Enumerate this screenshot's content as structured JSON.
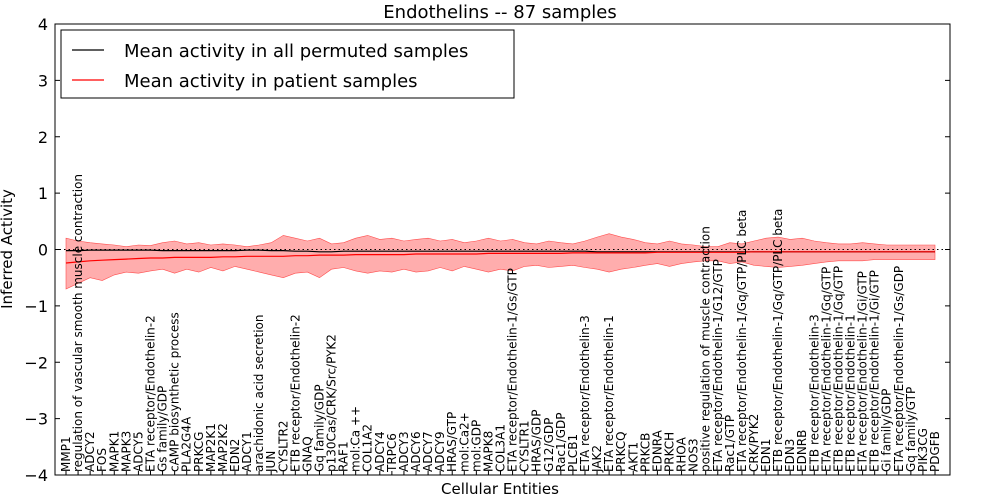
{
  "chart_data": {
    "type": "line",
    "title": "Endothelins -- 87 samples",
    "xlabel": "Cellular Entities",
    "ylabel": "Inferred Activity",
    "ylim": [
      -4,
      4
    ],
    "yticks": [
      "−4",
      "−3",
      "−2",
      "−1",
      "0",
      "1",
      "2",
      "3",
      "4"
    ],
    "legend_position": "top-left",
    "zero_reference_line": "dotted",
    "categories": [
      "MMP1",
      "regulation of vascular smooth muscle contraction",
      "ADCY2",
      "FOS",
      "MAPK1",
      "MAPK3",
      "ADCY5",
      "ETA receptor/Endothelin-2",
      "Gs family/GDP",
      "cAMP biosynthetic process",
      "PLA2G4A",
      "PRKCG",
      "MAP2K1",
      "MAP2K2",
      "EDN2",
      "ADCY1",
      "arachidonic acid secretion",
      "JUN",
      "CYSLTR2",
      "ETB receptor/Endothelin-2",
      "GNAQ",
      "Gq family/GDP",
      "p130Cas/CRK/Src/PYK2",
      "RAF1",
      "mol:Ca ++",
      "COL1A2",
      "ADCY4",
      "TRPC6",
      "ADCY3",
      "ADCY6",
      "ADCY7",
      "ADCY9",
      "HRAS/GTP",
      "mol:Ca2+",
      "mol:GDP",
      "MAPK8",
      "COL3A1",
      "ETA receptor/Endothelin-1/Gs/GTP",
      "CYSLTR1",
      "HRAS/GDP",
      "G12/GDP",
      "Rac1/GDP",
      "PLCB1",
      "ETA receptor/Endothelin-3",
      "JAK2",
      "ETA receptor/Endothelin-1",
      "PRKCQ",
      "AKT1",
      "PRKCB",
      "EDNRA",
      "PRKCH",
      "RHOA",
      "NOS3",
      "positive regulation of muscle contraction",
      "ETA receptor/Endothelin-1/G12/GTP",
      "Rac1/GTP",
      "ETA receptor/Endothelin-1/Gq/GTP/PLC beta",
      "CRK/PYK2",
      "EDN1",
      "ETB receptor/Endothelin-1/Gq/GTP/PLC beta",
      "EDN3",
      "EDNRB",
      "ETB receptor/Endothelin-3",
      "ETA receptor/Endothelin-1/Gq/GTP",
      "ETB receptor/Endothelin-1/Gq/GTP",
      "ETB receptor/Endothelin-1",
      "ETA receptor/Endothelin-1/Gi/GTP",
      "ETB receptor/Endothelin-1/Gi/GTP",
      "Gi family/GDP",
      "ETA receptor/Endothelin-1/Gs/GDP",
      "Gq family/GTP",
      "PIK3CG",
      "PDGFB"
    ],
    "series": [
      {
        "name": "Mean activity in all permuted samples",
        "color": "#000000",
        "values": [
          -0.02,
          -0.02,
          -0.01,
          -0.01,
          -0.01,
          -0.01,
          -0.01,
          -0.01,
          -0.02,
          -0.02,
          -0.02,
          -0.02,
          -0.02,
          -0.02,
          -0.02,
          -0.01,
          -0.01,
          -0.02,
          -0.02,
          -0.03,
          -0.03,
          -0.04,
          -0.04,
          -0.03,
          -0.03,
          -0.03,
          -0.03,
          -0.03,
          -0.03,
          -0.03,
          -0.03,
          -0.03,
          -0.03,
          -0.03,
          -0.03,
          -0.03,
          -0.03,
          -0.03,
          -0.03,
          -0.03,
          -0.03,
          -0.03,
          -0.03,
          -0.03,
          -0.04,
          -0.04,
          -0.04,
          -0.04,
          -0.04,
          -0.04,
          -0.04,
          -0.04,
          -0.04,
          -0.04,
          -0.04,
          -0.04,
          -0.04,
          -0.04,
          -0.04,
          -0.04,
          -0.04,
          -0.04,
          -0.04,
          -0.04,
          -0.04,
          -0.04,
          -0.04,
          -0.04,
          -0.04,
          -0.04,
          -0.04,
          -0.04,
          -0.04
        ]
      },
      {
        "name": "Mean activity in patient samples",
        "color": "#ff0000",
        "band_color": "#ff9999",
        "values": [
          -0.24,
          -0.22,
          -0.2,
          -0.19,
          -0.18,
          -0.17,
          -0.16,
          -0.15,
          -0.15,
          -0.14,
          -0.14,
          -0.14,
          -0.14,
          -0.13,
          -0.13,
          -0.12,
          -0.12,
          -0.12,
          -0.12,
          -0.11,
          -0.11,
          -0.1,
          -0.1,
          -0.1,
          -0.09,
          -0.09,
          -0.09,
          -0.09,
          -0.09,
          -0.08,
          -0.08,
          -0.08,
          -0.08,
          -0.08,
          -0.08,
          -0.07,
          -0.07,
          -0.07,
          -0.07,
          -0.07,
          -0.07,
          -0.07,
          -0.06,
          -0.06,
          -0.06,
          -0.06,
          -0.06,
          -0.06,
          -0.06,
          -0.05,
          -0.05,
          -0.05,
          -0.05,
          -0.05,
          -0.05,
          -0.05,
          -0.05,
          -0.04,
          -0.04,
          -0.04,
          -0.04,
          -0.04,
          -0.04,
          -0.04,
          -0.04,
          -0.04,
          -0.04,
          -0.04,
          -0.04,
          -0.04,
          -0.04,
          -0.04,
          -0.04
        ],
        "upper": [
          0.2,
          0.15,
          0.12,
          0.1,
          0.08,
          0.05,
          0.08,
          0.07,
          0.12,
          0.15,
          0.1,
          0.12,
          0.08,
          0.1,
          0.08,
          0.05,
          0.08,
          0.12,
          0.25,
          0.2,
          0.15,
          0.2,
          0.1,
          0.12,
          0.2,
          0.25,
          0.18,
          0.2,
          0.15,
          0.18,
          0.2,
          0.15,
          0.18,
          0.12,
          0.15,
          0.2,
          0.15,
          0.18,
          0.12,
          0.1,
          0.15,
          0.12,
          0.1,
          0.15,
          0.22,
          0.28,
          0.22,
          0.18,
          0.12,
          0.1,
          0.15,
          0.1,
          0.08,
          0.05,
          0.05,
          0.12,
          0.1,
          0.15,
          0.2,
          0.22,
          0.18,
          0.2,
          0.15,
          0.12,
          0.1,
          0.1,
          0.12,
          0.1,
          0.08,
          0.08,
          0.08,
          0.08,
          0.08
        ],
        "lower": [
          -0.7,
          -0.6,
          -0.5,
          -0.55,
          -0.45,
          -0.4,
          -0.42,
          -0.38,
          -0.35,
          -0.42,
          -0.35,
          -0.4,
          -0.32,
          -0.38,
          -0.3,
          -0.35,
          -0.4,
          -0.45,
          -0.5,
          -0.42,
          -0.4,
          -0.5,
          -0.35,
          -0.32,
          -0.38,
          -0.42,
          -0.38,
          -0.4,
          -0.35,
          -0.4,
          -0.38,
          -0.32,
          -0.38,
          -0.3,
          -0.35,
          -0.4,
          -0.35,
          -0.38,
          -0.3,
          -0.28,
          -0.32,
          -0.3,
          -0.28,
          -0.32,
          -0.35,
          -0.4,
          -0.35,
          -0.32,
          -0.28,
          -0.25,
          -0.3,
          -0.25,
          -0.22,
          -0.2,
          -0.2,
          -0.25,
          -0.22,
          -0.28,
          -0.3,
          -0.32,
          -0.3,
          -0.28,
          -0.25,
          -0.22,
          -0.2,
          -0.2,
          -0.2,
          -0.18,
          -0.18,
          -0.18,
          -0.18,
          -0.18,
          -0.18
        ]
      }
    ]
  }
}
